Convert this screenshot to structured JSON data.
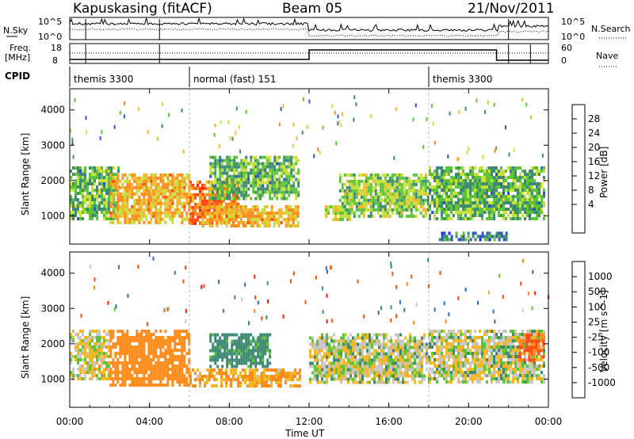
{
  "header": {
    "station": "Kapuskasing (fitACF)",
    "beam": "Beam 05",
    "date": "21/Nov/2011"
  },
  "top_panels": {
    "nsky_label": "N.Sky",
    "nsearch_label": "N.Search",
    "noise_left_ticks": [
      "10^5",
      "10^0"
    ],
    "noise_right_ticks": [
      "10^5",
      "10^0"
    ],
    "freq_label": "Freq.",
    "freq_unit": "[MHz]",
    "freq_ticks": [
      "18",
      "8"
    ],
    "nave_label": "Nave",
    "nave_ticks": [
      "60",
      "0"
    ],
    "cpid_label": "CPID",
    "cpid_segments": [
      {
        "label": "themis 3300",
        "start_hour": 0
      },
      {
        "label": "normal (fast) 151",
        "start_hour": 6
      },
      {
        "label": "themis 3300",
        "start_hour": 18
      }
    ]
  },
  "x_axis": {
    "title": "Time UT",
    "ticks": [
      "00:00",
      "04:00",
      "08:00",
      "12:00",
      "16:00",
      "20:00",
      "00:00"
    ],
    "range_hours": [
      0,
      24
    ]
  },
  "chart_data": [
    {
      "type": "heatmap",
      "name": "power",
      "ylabel": "Slant Range [km]",
      "yticks": [
        1000,
        2000,
        3000,
        4000
      ],
      "ylim": [
        200,
        4600
      ],
      "colorbar_label": "Power [dB]",
      "colorbar_ticks": [
        "4",
        "8",
        "12",
        "16",
        "20",
        "24",
        "28"
      ],
      "colorbar_colors": [
        "#1a1aff",
        "#2f56b8",
        "#3e8a74",
        "#5dc43a",
        "#c8e03c",
        "#f0b82a",
        "#ff8c1a",
        "#ff4a12",
        "#ff1a0a"
      ],
      "echo_regions": [
        {
          "t0": 0.0,
          "t1": 2.5,
          "r0": 900,
          "r1": 2400,
          "level": 12
        },
        {
          "t0": 2.0,
          "t1": 6.0,
          "r0": 850,
          "r1": 2200,
          "level": 20
        },
        {
          "t0": 6.0,
          "t1": 8.5,
          "r0": 800,
          "r1": 2000,
          "level": 24
        },
        {
          "t0": 6.5,
          "t1": 11.5,
          "r0": 750,
          "r1": 1300,
          "level": 20
        },
        {
          "t0": 7.0,
          "t1": 11.5,
          "r0": 1500,
          "r1": 2700,
          "level": 12
        },
        {
          "t0": 12.8,
          "t1": 14.0,
          "r0": 900,
          "r1": 1300,
          "level": 16
        },
        {
          "t0": 13.5,
          "t1": 18.0,
          "r0": 1000,
          "r1": 2200,
          "level": 14
        },
        {
          "t0": 18.0,
          "t1": 23.8,
          "r0": 900,
          "r1": 2400,
          "level": 12
        },
        {
          "t0": 18.5,
          "t1": 22.0,
          "r0": 300,
          "r1": 550,
          "level": 8
        }
      ]
    },
    {
      "type": "heatmap",
      "name": "velocity",
      "ylabel": "Slant Range [km]",
      "yticks": [
        1000,
        2000,
        3000,
        4000
      ],
      "ylim": [
        200,
        4600
      ],
      "colorbar_label": "Velocity [m s^-1]",
      "colorbar_ticks": [
        "1000",
        "500",
        "100",
        "25",
        "-25",
        "-100",
        "-500",
        "-1000"
      ],
      "colorbar_colors": [
        "#1a1aff",
        "#2f6ab8",
        "#3e8a74",
        "#5dc43a",
        "#c8c8c8",
        "#f0b82a",
        "#ff8c1a",
        "#ff4a12",
        "#ff1a0a"
      ],
      "echo_regions": [
        {
          "t0": 0.0,
          "t1": 2.0,
          "r0": 1000,
          "r1": 2400,
          "level": -25
        },
        {
          "t0": 2.0,
          "t1": 6.0,
          "r0": 800,
          "r1": 2400,
          "level": -200
        },
        {
          "t0": 6.0,
          "t1": 11.5,
          "r0": 800,
          "r1": 1300,
          "level": -100
        },
        {
          "t0": 7.0,
          "t1": 10.0,
          "r0": 1400,
          "r1": 2300,
          "level": 120
        },
        {
          "t0": 12.0,
          "t1": 18.0,
          "r0": 900,
          "r1": 2300,
          "level": 0
        },
        {
          "t0": 18.0,
          "t1": 23.8,
          "r0": 900,
          "r1": 2400,
          "level": 0
        },
        {
          "t0": 22.5,
          "t1": 23.8,
          "r0": 1500,
          "r1": 2300,
          "level": -300
        }
      ]
    }
  ]
}
